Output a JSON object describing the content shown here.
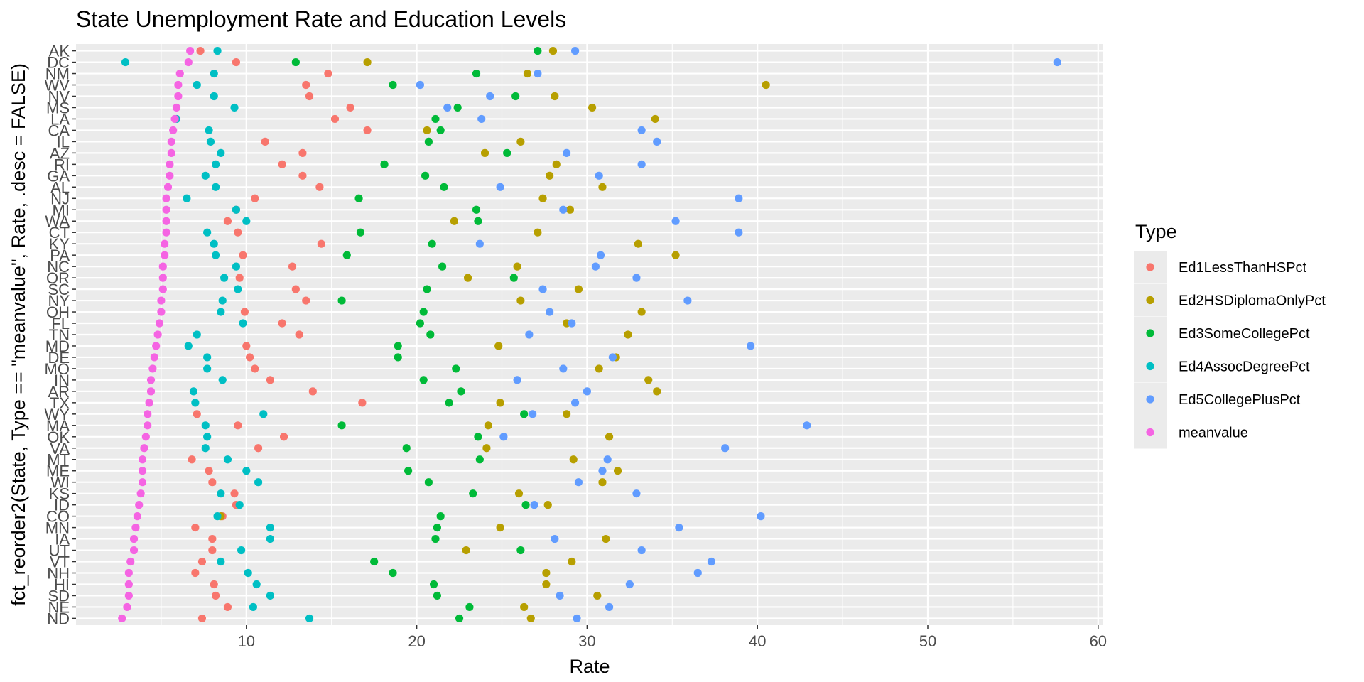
{
  "chart_data": {
    "type": "scatter",
    "title": "State Unemployment Rate and Education Levels",
    "xlabel": "Rate",
    "ylabel": "fct_reorder2(State, Type == \"meanvalue\", Rate, .desc = FALSE)",
    "xlim": [
      0,
      60.3
    ],
    "x_ticks": [
      10,
      20,
      30,
      40,
      50,
      60
    ],
    "grid": true,
    "legend": {
      "title": "Type",
      "placement": "right"
    },
    "categories": [
      "AK",
      "DC",
      "NM",
      "WV",
      "NV",
      "MS",
      "LA",
      "CA",
      "IL",
      "AZ",
      "RI",
      "GA",
      "AL",
      "NJ",
      "MI",
      "WA",
      "CT",
      "KY",
      "PA",
      "NC",
      "OR",
      "SC",
      "NY",
      "OH",
      "FL",
      "TN",
      "MD",
      "DE",
      "MO",
      "IN",
      "AR",
      "TX",
      "WY",
      "MA",
      "OK",
      "VA",
      "MT",
      "ME",
      "WI",
      "KS",
      "ID",
      "CO",
      "MN",
      "IA",
      "UT",
      "VT",
      "NH",
      "HI",
      "SD",
      "NE",
      "ND"
    ],
    "series": [
      {
        "name": "Ed1LessThanHSPct",
        "color": "#F8766D",
        "values": [
          7.3,
          9.4,
          14.8,
          13.5,
          13.7,
          16.1,
          15.2,
          17.1,
          11.1,
          13.3,
          12.1,
          13.3,
          14.3,
          10.5,
          9.4,
          8.9,
          9.5,
          14.4,
          9.8,
          12.7,
          9.6,
          12.9,
          13.5,
          9.9,
          12.1,
          13.1,
          10.0,
          10.2,
          10.5,
          11.4,
          13.9,
          16.8,
          7.1,
          9.5,
          12.2,
          10.7,
          6.8,
          7.8,
          8.0,
          9.3,
          9.4,
          8.6,
          7.0,
          8.0,
          8.0,
          7.4,
          7.0,
          8.1,
          8.2,
          8.9,
          7.4
        ]
      },
      {
        "name": "Ed2HSDiplomaOnlyPct",
        "color": "#B79F00",
        "values": [
          28.0,
          17.1,
          26.5,
          40.5,
          28.1,
          30.3,
          34.0,
          20.6,
          26.1,
          24.0,
          28.2,
          27.8,
          30.9,
          27.4,
          29.0,
          22.2,
          27.1,
          33.0,
          35.2,
          25.9,
          23.0,
          29.5,
          26.1,
          33.2,
          28.8,
          32.4,
          24.8,
          31.7,
          30.7,
          33.6,
          34.1,
          24.9,
          28.8,
          24.2,
          31.3,
          24.1,
          29.2,
          31.8,
          30.9,
          26.0,
          27.7,
          8.5,
          24.9,
          31.1,
          22.9,
          29.1,
          27.6,
          27.6,
          30.6,
          26.3,
          26.7
        ]
      },
      {
        "name": "Ed3SomeCollegePct",
        "color": "#00BA38",
        "values": [
          27.1,
          12.9,
          23.5,
          18.6,
          25.8,
          22.4,
          21.1,
          21.4,
          20.7,
          25.3,
          18.1,
          20.5,
          21.6,
          16.6,
          23.5,
          23.6,
          16.7,
          20.9,
          15.9,
          21.5,
          25.7,
          20.6,
          15.6,
          20.4,
          20.2,
          20.8,
          18.9,
          18.9,
          22.3,
          20.4,
          22.6,
          21.9,
          26.3,
          15.6,
          23.6,
          19.4,
          23.7,
          19.5,
          20.7,
          23.3,
          26.4,
          21.4,
          21.2,
          21.1,
          26.1,
          17.5,
          18.6,
          21.0,
          21.2,
          23.1,
          22.5
        ]
      },
      {
        "name": "Ed4AssocDegreePct",
        "color": "#00BFC4",
        "values": [
          8.3,
          2.9,
          8.1,
          7.1,
          8.1,
          9.3,
          5.9,
          7.8,
          7.9,
          8.5,
          8.2,
          7.6,
          8.2,
          6.5,
          9.4,
          10.0,
          7.7,
          8.1,
          8.2,
          9.4,
          8.7,
          9.5,
          8.6,
          8.5,
          9.8,
          7.1,
          6.6,
          7.7,
          7.7,
          8.6,
          6.9,
          7.0,
          11.0,
          7.6,
          7.7,
          7.6,
          8.9,
          10.0,
          10.7,
          8.5,
          9.6,
          8.3,
          11.4,
          11.4,
          9.7,
          8.5,
          10.1,
          10.6,
          11.4,
          10.4,
          13.7
        ]
      },
      {
        "name": "Ed5CollegePlusPct",
        "color": "#619CFF",
        "values": [
          29.3,
          57.6,
          27.1,
          20.2,
          24.3,
          21.8,
          23.8,
          33.2,
          34.1,
          28.8,
          33.2,
          30.7,
          24.9,
          38.9,
          28.6,
          35.2,
          38.9,
          23.7,
          30.8,
          30.5,
          32.9,
          27.4,
          35.9,
          27.8,
          29.1,
          26.6,
          39.6,
          31.5,
          28.6,
          25.9,
          30.0,
          29.3,
          26.8,
          42.9,
          25.1,
          38.1,
          31.2,
          30.9,
          29.5,
          32.9,
          26.9,
          40.2,
          35.4,
          28.1,
          33.2,
          37.3,
          36.5,
          32.5,
          28.4,
          31.3,
          29.4
        ]
      },
      {
        "name": "meanvalue",
        "color": "#F564E3",
        "values": [
          6.7,
          6.6,
          6.1,
          6.0,
          6.0,
          5.9,
          5.8,
          5.7,
          5.6,
          5.6,
          5.5,
          5.5,
          5.4,
          5.3,
          5.3,
          5.3,
          5.3,
          5.2,
          5.2,
          5.1,
          5.1,
          5.1,
          5.0,
          5.0,
          4.9,
          4.8,
          4.7,
          4.6,
          4.5,
          4.4,
          4.4,
          4.3,
          4.2,
          4.2,
          4.1,
          4.0,
          3.9,
          3.9,
          3.9,
          3.8,
          3.7,
          3.6,
          3.5,
          3.4,
          3.4,
          3.2,
          3.1,
          3.1,
          3.1,
          3.0,
          2.7
        ]
      }
    ]
  }
}
